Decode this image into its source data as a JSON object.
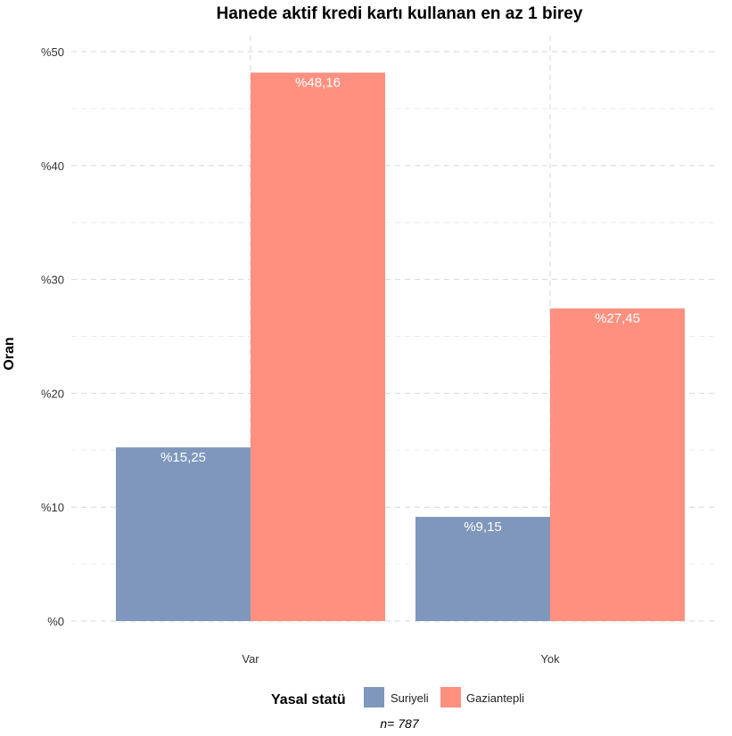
{
  "chart_data": {
    "type": "bar",
    "title": "Hanede aktif kredi kartı kullanan en az 1 birey",
    "xlabel": "",
    "ylabel": "Oran",
    "categories": [
      "Var",
      "Yok"
    ],
    "series": [
      {
        "name": "Suriyeli",
        "color": "#7f97bc",
        "values": [
          15.25,
          9.15
        ],
        "labels": [
          "%15,25",
          "%9,15"
        ]
      },
      {
        "name": "Gaziantepli",
        "color": "#ff9080",
        "values": [
          48.16,
          27.45
        ],
        "labels": [
          "%48,16",
          "%27,45"
        ]
      }
    ],
    "ylim": [
      0,
      50
    ],
    "yticks": [
      {
        "value": 0,
        "label": "%0"
      },
      {
        "value": 10,
        "label": "%10"
      },
      {
        "value": 20,
        "label": "%20"
      },
      {
        "value": 30,
        "label": "%30"
      },
      {
        "value": 40,
        "label": "%40"
      },
      {
        "value": 50,
        "label": "%50"
      }
    ],
    "grid": true,
    "legend": {
      "title": "Yasal statü",
      "placement": "bottom"
    },
    "caption": "n=  787"
  }
}
